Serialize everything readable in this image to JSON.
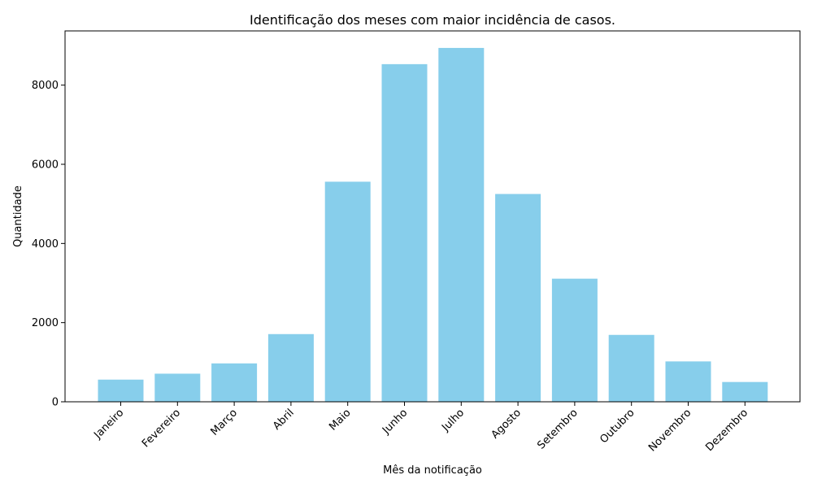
{
  "chart_data": {
    "type": "bar",
    "title": "Identificação dos meses com maior incidência de casos.",
    "xlabel": "Mês da notificação",
    "ylabel": "Quantidade",
    "categories": [
      "Janeiro",
      "Fevereiro",
      "Março",
      "Abril",
      "Maio",
      "Junho",
      "Julho",
      "Agosto",
      "Setembro",
      "Outubro",
      "Novembro",
      "Dezembro"
    ],
    "values": [
      560,
      710,
      970,
      1710,
      5560,
      8530,
      8940,
      5250,
      3110,
      1690,
      1020,
      500
    ],
    "ylim": [
      0,
      9370
    ],
    "yticks": [
      0,
      2000,
      4000,
      6000,
      8000
    ],
    "bar_color": "#87ceeb",
    "grid": false,
    "legend": "none"
  }
}
